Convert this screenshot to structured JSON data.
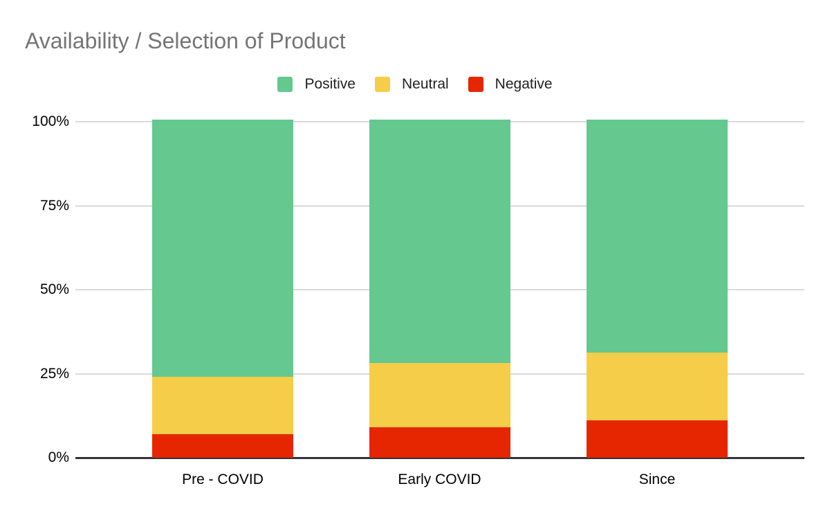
{
  "chart_data": {
    "type": "bar",
    "variant": "stacked-100-percent-column",
    "title": "Availability / Selection of Product",
    "categories": [
      "Pre - COVID",
      "Early COVID",
      "Since"
    ],
    "series": [
      {
        "name": "Positive",
        "color": "#64c88f",
        "values": [
          76,
          72,
          69
        ]
      },
      {
        "name": "Neutral",
        "color": "#f5cd48",
        "values": [
          17,
          19,
          20
        ]
      },
      {
        "name": "Negative",
        "color": "#e52600",
        "values": [
          7,
          9,
          11
        ]
      }
    ],
    "yticks": [
      {
        "label": "100%",
        "value": 100
      },
      {
        "label": "75%",
        "value": 75
      },
      {
        "label": "50%",
        "value": 50
      },
      {
        "label": "25%",
        "value": 25
      },
      {
        "label": "0%",
        "value": 0
      }
    ],
    "ylim": [
      0,
      100
    ],
    "xlabel": "",
    "ylabel": "",
    "legend_position": "top",
    "grid": "horizontal",
    "colors": {
      "title_text": "#757575",
      "axis_text": "#000000",
      "legend_text": "#212121",
      "gridline": "#d9d9d9",
      "baseline": "#333333",
      "background": "#ffffff"
    }
  }
}
